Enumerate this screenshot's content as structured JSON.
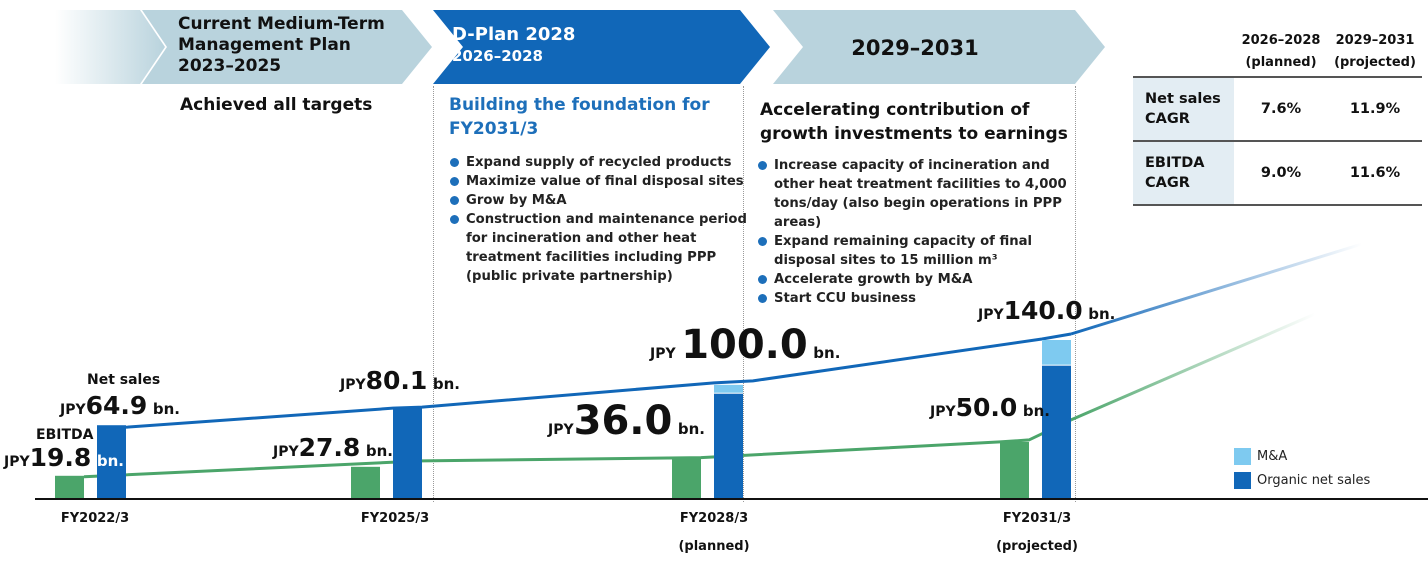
{
  "phases": [
    {
      "title_lines": [
        "Current Medium-Term",
        "Management Plan",
        "2023–2025"
      ],
      "heading": "Achieved all targets",
      "bullets": []
    },
    {
      "title": "D-Plan 2028",
      "period": "2026–2028",
      "heading": "Building the foundation for FY2031/3",
      "bullets": [
        "Expand supply of recycled products",
        "Maximize value of final disposal sites",
        "Grow by M&A",
        "Construction and maintenance period for incineration and other heat treatment facilities including PPP (public private partnership)"
      ]
    },
    {
      "title": "2029–2031",
      "heading": "Accelerating contribution of growth investments to earnings",
      "bullets": [
        "Increase capacity of incineration and other heat treatment facilities to 4,000 tons/day (also begin operations in PPP areas)",
        "Expand remaining capacity of final disposal sites to 15 million m³",
        "Accelerate growth by M&A",
        "Start CCU business"
      ]
    }
  ],
  "cagr_table": {
    "columns": [
      {
        "period": "2026–2028",
        "note": "(planned)"
      },
      {
        "period": "2029–2031",
        "note": "(projected)"
      }
    ],
    "rows": [
      {
        "label_lines": [
          "Net sales",
          "CAGR"
        ],
        "values": [
          "7.6%",
          "11.9%"
        ]
      },
      {
        "label_lines": [
          "EBITDA",
          "CAGR"
        ],
        "values": [
          "9.0%",
          "11.6%"
        ]
      }
    ]
  },
  "labels": {
    "net_sales": "Net sales",
    "ebitda": "EBITDA",
    "currency": "JPY",
    "unit": "bn."
  },
  "chart_data": {
    "type": "bar",
    "title": "",
    "xlabel": "",
    "ylabel": "JPY bn.",
    "ylim": [
      0,
      150
    ],
    "grid": false,
    "categories": [
      {
        "label": "FY2022/3",
        "note": ""
      },
      {
        "label": "FY2025/3",
        "note": ""
      },
      {
        "label": "FY2028/3",
        "note": "(planned)"
      },
      {
        "label": "FY2031/3",
        "note": "(projected)"
      }
    ],
    "series": [
      {
        "name": "EBITDA",
        "color": "#4ba56a",
        "values": [
          19.8,
          27.8,
          36.0,
          50.0
        ],
        "labels": [
          "19.8",
          "27.8",
          "36.0",
          "50.0"
        ]
      },
      {
        "name": "Organic net sales",
        "color": "#1167b8",
        "values": [
          64.9,
          80.1,
          93.0,
          118.0
        ]
      },
      {
        "name": "M&A",
        "color": "#7ecaf0",
        "values": [
          0,
          0,
          7.0,
          22.0
        ]
      }
    ],
    "net_sales_totals": [
      64.9,
      80.1,
      100.0,
      140.0
    ],
    "net_sales_labels": [
      "64.9",
      "80.1",
      "100.0",
      "140.0"
    ],
    "legend": {
      "position": "bottom-right",
      "entries": [
        "M&A",
        "Organic net sales"
      ]
    },
    "trend_lines": [
      {
        "name": "Net sales trend",
        "color": "#1167b8"
      },
      {
        "name": "EBITDA trend",
        "color": "#4ba56a"
      }
    ]
  },
  "colors": {
    "phase_light": "#b9d3dd",
    "phase_dark": "#1167b8",
    "ebitda": "#4ba56a",
    "organic": "#1167b8",
    "mna": "#7ecaf0",
    "heading_blue": "#1d6fba"
  }
}
